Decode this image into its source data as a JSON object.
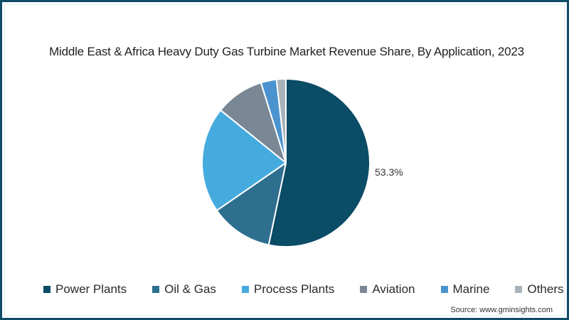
{
  "chart_data": {
    "type": "pie",
    "title": "Middle East & Africa Heavy Duty Gas Turbine Market Revenue Share, By Application, 2023",
    "categories": [
      "Power Plants",
      "Oil & Gas",
      "Process Plants",
      "Aviation",
      "Marine",
      "Others"
    ],
    "values": [
      53.3,
      12.1,
      20.4,
      9.4,
      3.0,
      1.8
    ],
    "unit": "%",
    "colors": [
      "#0b4c66",
      "#2e6f90",
      "#45abdf",
      "#7a8896",
      "#4a93cf",
      "#a9b3ba"
    ],
    "data_labels": [
      {
        "category": "Power Plants",
        "text": "53.3%"
      }
    ],
    "start_angle_deg": 0,
    "direction": "clockwise",
    "legend_position": "bottom"
  },
  "chart": {
    "title": "Middle East & Africa Heavy Duty Gas Turbine Market Revenue Share, By Application, 2023",
    "data_label": "53.3%",
    "legend": [
      {
        "label": "Power Plants",
        "color": "#0b4c66"
      },
      {
        "label": "Oil & Gas",
        "color": "#2e6f90"
      },
      {
        "label": "Process Plants",
        "color": "#45abdf"
      },
      {
        "label": "Aviation",
        "color": "#7a8896"
      },
      {
        "label": "Marine",
        "color": "#4a93cf"
      },
      {
        "label": "Others",
        "color": "#a9b3ba"
      }
    ],
    "source": "Source: www.gminsights.com"
  }
}
